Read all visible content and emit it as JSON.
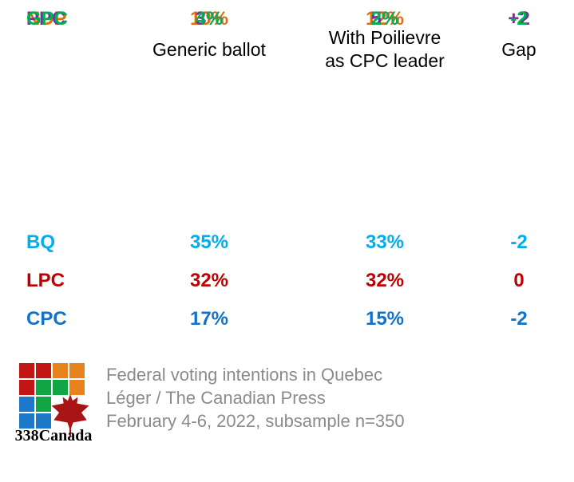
{
  "header": {
    "col1": "Generic ballot",
    "col2_line1": "With Poilievre",
    "col2_line2": "as CPC leader",
    "col3": "Gap"
  },
  "rows": [
    {
      "party": "BQ",
      "generic": "35%",
      "poilievre": "33%",
      "gap": "-2",
      "color": "#00AEEF"
    },
    {
      "party": "LPC",
      "generic": "32%",
      "poilievre": "32%",
      "gap": "0",
      "color": "#C00000"
    },
    {
      "party": "CPC",
      "generic": "17%",
      "poilievre": "15%",
      "gap": "-2",
      "color": "#1272C8"
    },
    {
      "party": "NDP",
      "generic": "10%",
      "poilievre": "12%",
      "gap": "+2",
      "color": "#E36C0A"
    },
    {
      "party": "PPC",
      "generic": "3%",
      "poilievre": "5%",
      "gap": "+2",
      "color": "#7030A0"
    },
    {
      "party": "GPC",
      "generic": "4%",
      "poilievre": "2%",
      "gap": "-2",
      "color": "#00B050"
    }
  ],
  "footer": {
    "logo_text": "338Canada",
    "caption_line1": "Federal voting intentions in Quebec",
    "caption_line2": "Léger / The Canadian Press",
    "caption_line3": "February 4-6, 2022, subsample n=350"
  },
  "logo": {
    "grid": [
      [
        "red",
        "red",
        "orange",
        "orange"
      ],
      [
        "red",
        "green",
        "green",
        "orange"
      ],
      [
        "blue",
        "green",
        "",
        ""
      ],
      [
        "blue",
        "blue",
        "",
        ""
      ]
    ],
    "palette": {
      "red": "#C41515",
      "orange": "#E8821C",
      "green": "#12A543",
      "blue": "#1E78C8"
    },
    "leaf_color": "#A81414"
  },
  "chart_data": {
    "type": "table",
    "title": "Federal voting intentions in Quebec",
    "source": "Léger / The Canadian Press",
    "date_note": "February 4-6, 2022, subsample n=350",
    "columns": [
      "Generic ballot",
      "With Poilievre as CPC leader",
      "Gap"
    ],
    "categories": [
      "BQ",
      "LPC",
      "CPC",
      "NDP",
      "PPC",
      "GPC"
    ],
    "series": [
      {
        "name": "Generic ballot",
        "values": [
          35,
          32,
          17,
          10,
          3,
          4
        ]
      },
      {
        "name": "With Poilievre as CPC leader",
        "values": [
          33,
          32,
          15,
          12,
          5,
          2
        ]
      },
      {
        "name": "Gap",
        "values": [
          -2,
          0,
          -2,
          2,
          2,
          -2
        ]
      }
    ],
    "party_colors": [
      "#00AEEF",
      "#C00000",
      "#1272C8",
      "#E36C0A",
      "#7030A0",
      "#00B050"
    ]
  }
}
